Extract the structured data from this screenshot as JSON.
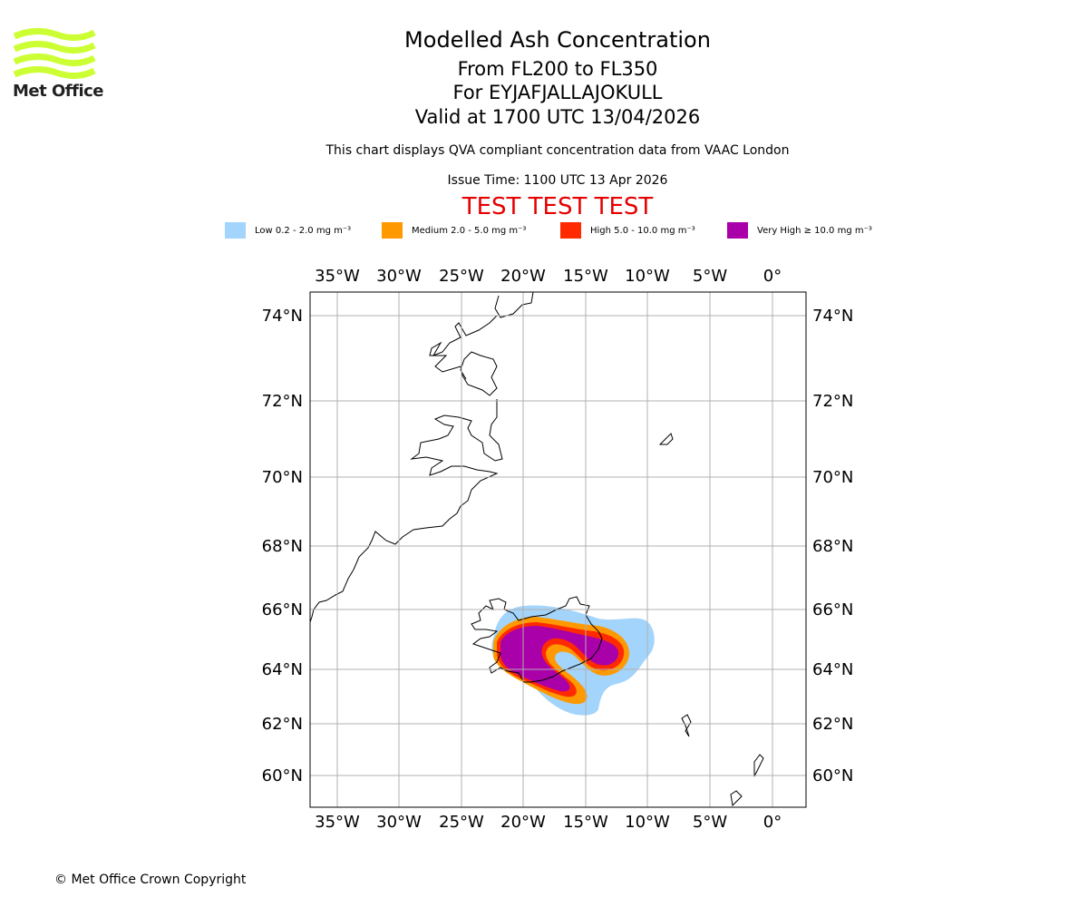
{
  "logo": {
    "name": "Met Office",
    "color": "#ccff33"
  },
  "header": {
    "title": "Modelled Ash Concentration",
    "levels": "From FL200 to FL350",
    "volcano": "For EYJAFJALLAJOKULL",
    "valid": "Valid at 1700 UTC 13/04/2026",
    "compliance": "This chart displays QVA compliant concentration data from VAAC London",
    "issue": "Issue Time: 1100 UTC 13 Apr 2026",
    "test_banner": "TEST TEST TEST"
  },
  "legend": [
    {
      "label": "Low 0.2 - 2.0 mg m⁻³",
      "color": "#a3d4fb"
    },
    {
      "label": "Medium 2.0 - 5.0 mg m⁻³",
      "color": "#ff9900"
    },
    {
      "label": "High 5.0 - 10.0 mg m⁻³",
      "color": "#ff2a00"
    },
    {
      "label": "Very High ≥ 10.0 mg m⁻³",
      "color": "#aa00aa"
    }
  ],
  "map": {
    "lon_ticks": [
      "35°W",
      "30°W",
      "25°W",
      "20°W",
      "15°W",
      "10°W",
      "5°W",
      "0°"
    ],
    "lat_ticks": [
      "74°N",
      "72°N",
      "70°N",
      "68°N",
      "66°N",
      "64°N",
      "62°N",
      "60°N"
    ]
  },
  "footer": {
    "copyright": "© Met Office Crown Copyright"
  }
}
